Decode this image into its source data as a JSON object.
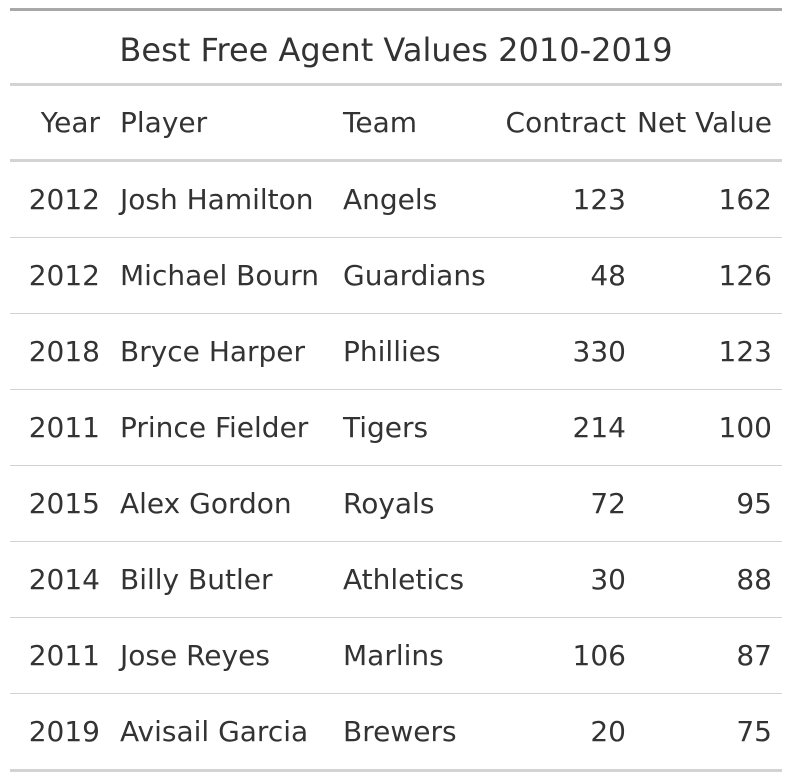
{
  "table": {
    "title": "Best Free Agent Values 2010-2019",
    "columns": [
      "Year",
      "Player",
      "Team",
      "Contract",
      "Net Value"
    ],
    "rows": [
      {
        "year": "2012",
        "player": "Josh Hamilton",
        "team": "Angels",
        "contract": "123",
        "net_value": "162"
      },
      {
        "year": "2012",
        "player": "Michael Bourn",
        "team": "Guardians",
        "contract": "48",
        "net_value": "126"
      },
      {
        "year": "2018",
        "player": "Bryce Harper",
        "team": "Phillies",
        "contract": "330",
        "net_value": "123"
      },
      {
        "year": "2011",
        "player": "Prince Fielder",
        "team": "Tigers",
        "contract": "214",
        "net_value": "100"
      },
      {
        "year": "2015",
        "player": "Alex Gordon",
        "team": "Royals",
        "contract": "72",
        "net_value": "95"
      },
      {
        "year": "2014",
        "player": "Billy Butler",
        "team": "Athletics",
        "contract": "30",
        "net_value": "88"
      },
      {
        "year": "2011",
        "player": "Jose Reyes",
        "team": "Marlins",
        "contract": "106",
        "net_value": "87"
      },
      {
        "year": "2019",
        "player": "Avisail Garcia",
        "team": "Brewers",
        "contract": "20",
        "net_value": "75"
      }
    ]
  }
}
